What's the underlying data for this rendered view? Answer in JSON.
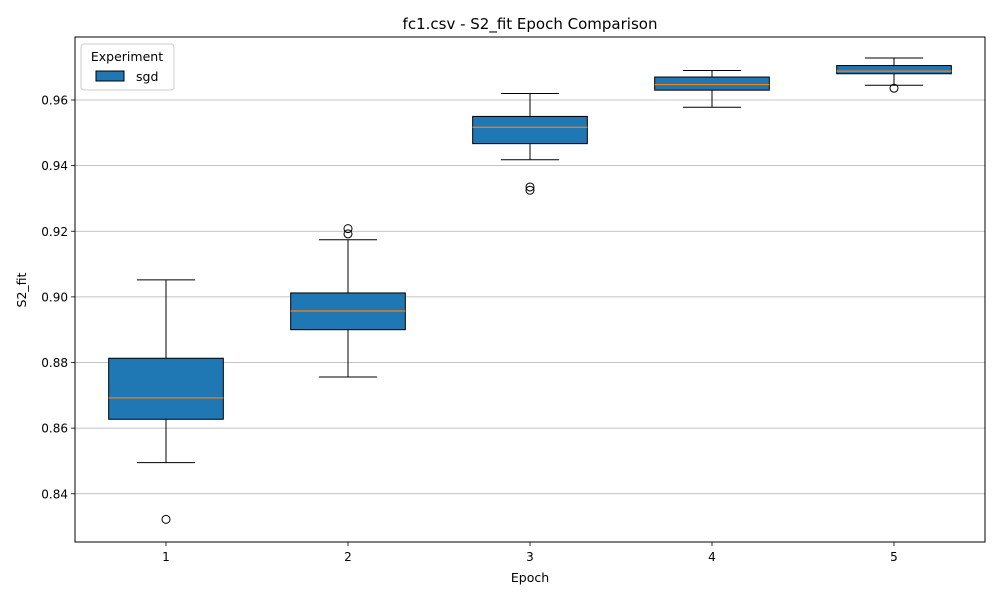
{
  "chart_data": {
    "type": "box",
    "title": "fc1.csv - S2_fit Epoch Comparison",
    "xlabel": "Epoch",
    "ylabel": "S2_fit",
    "categories": [
      "1",
      "2",
      "3",
      "4",
      "5"
    ],
    "ylim": [
      0.8253,
      0.9792
    ],
    "y_ticks": [
      "0.84",
      "0.86",
      "0.88",
      "0.90",
      "0.92",
      "0.94",
      "0.96"
    ],
    "y_tick_values": [
      0.84,
      0.86,
      0.88,
      0.9,
      0.92,
      0.94,
      0.96
    ],
    "grid": "y",
    "legend": {
      "title": "Experiment",
      "position": "top-left"
    },
    "colors": {
      "box_fill": "#1f77b4",
      "median": "#ff7f0e",
      "grid": "#b0b0b0",
      "outline": "#000000"
    },
    "series": [
      {
        "name": "sgd",
        "boxes": [
          {
            "epoch": "1",
            "whislo": 0.8495,
            "q1": 0.8627,
            "med": 0.8692,
            "q3": 0.8813,
            "whishi": 0.9052,
            "fliers": [
              0.8322
            ]
          },
          {
            "epoch": "2",
            "whislo": 0.8756,
            "q1": 0.89,
            "med": 0.8957,
            "q3": 0.9012,
            "whishi": 0.9174,
            "fliers": [
              0.9192,
              0.9208
            ]
          },
          {
            "epoch": "3",
            "whislo": 0.9418,
            "q1": 0.9467,
            "med": 0.9517,
            "q3": 0.955,
            "whishi": 0.962,
            "fliers": [
              0.9325,
              0.9335
            ]
          },
          {
            "epoch": "4",
            "whislo": 0.9578,
            "q1": 0.963,
            "med": 0.9647,
            "q3": 0.967,
            "whishi": 0.969,
            "fliers": []
          },
          {
            "epoch": "5",
            "whislo": 0.9645,
            "q1": 0.968,
            "med": 0.9688,
            "q3": 0.9705,
            "whishi": 0.9728,
            "fliers": [
              0.9636
            ]
          }
        ]
      }
    ]
  }
}
